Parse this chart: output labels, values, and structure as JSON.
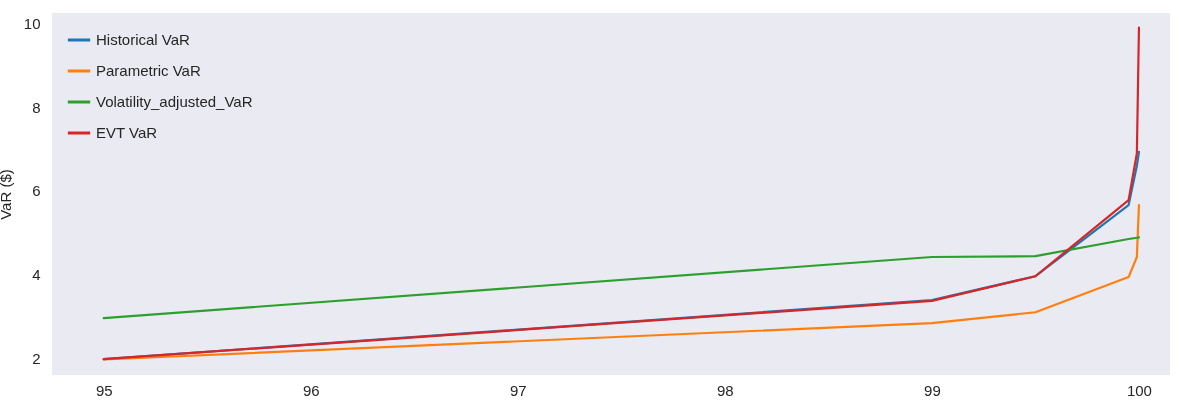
{
  "chart_data": {
    "type": "line",
    "ylabel": "VaR ($)",
    "x": [
      95,
      99,
      99.5,
      99.95,
      99.99,
      100
    ],
    "xlim": [
      94.75,
      100.15
    ],
    "xticks": [
      95,
      96,
      97,
      98,
      99,
      100
    ],
    "ylim": [
      1.6,
      10.25
    ],
    "yticks": [
      2,
      4,
      6,
      8,
      10
    ],
    "grid": false,
    "legend": "top left",
    "line_style": "solid",
    "marker": "none",
    "series": [
      {
        "name": "Historical VaR",
        "color": "#1f77b4",
        "values": [
          1.98,
          3.39,
          3.96,
          5.66,
          6.6,
          6.93
        ]
      },
      {
        "name": "Parametric VaR",
        "color": "#ff7f0e",
        "values": [
          1.97,
          2.84,
          3.1,
          3.94,
          4.42,
          5.66
        ]
      },
      {
        "name": "Volatility_adjusted_VaR",
        "color": "#2ca02c",
        "values": [
          2.96,
          4.42,
          4.44,
          4.85,
          4.88,
          4.89
        ]
      },
      {
        "name": "EVT VaR",
        "color": "#d62728",
        "values": [
          1.98,
          3.37,
          3.96,
          5.78,
          6.9,
          9.9
        ]
      }
    ]
  }
}
